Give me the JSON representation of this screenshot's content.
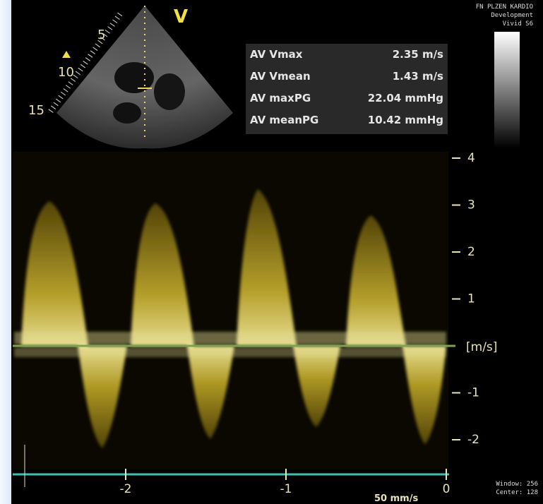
{
  "header": {
    "site": "FN PLZEN KARDIO",
    "note": "Development",
    "device": "Vivid S6"
  },
  "view_label": "V",
  "depth_labels": [
    "5",
    "10",
    "15"
  ],
  "measurements": [
    {
      "label": "AV Vmax",
      "value": "2.35 m/s"
    },
    {
      "label": "AV Vmean",
      "value": "1.43 m/s"
    },
    {
      "label": "AV maxPG",
      "value": "22.04 mmHg"
    },
    {
      "label": "AV meanPG",
      "value": "10.42 mmHg"
    }
  ],
  "velocity_scale": {
    "ticks": [
      4,
      3,
      2,
      1,
      -1,
      -2
    ],
    "unit": "[m/s]"
  },
  "time_scale": {
    "ticks": [
      -2,
      -1,
      0
    ],
    "sweep": "50 mm/s"
  },
  "display": {
    "window": "Window: 256",
    "center": "Center: 128"
  }
}
